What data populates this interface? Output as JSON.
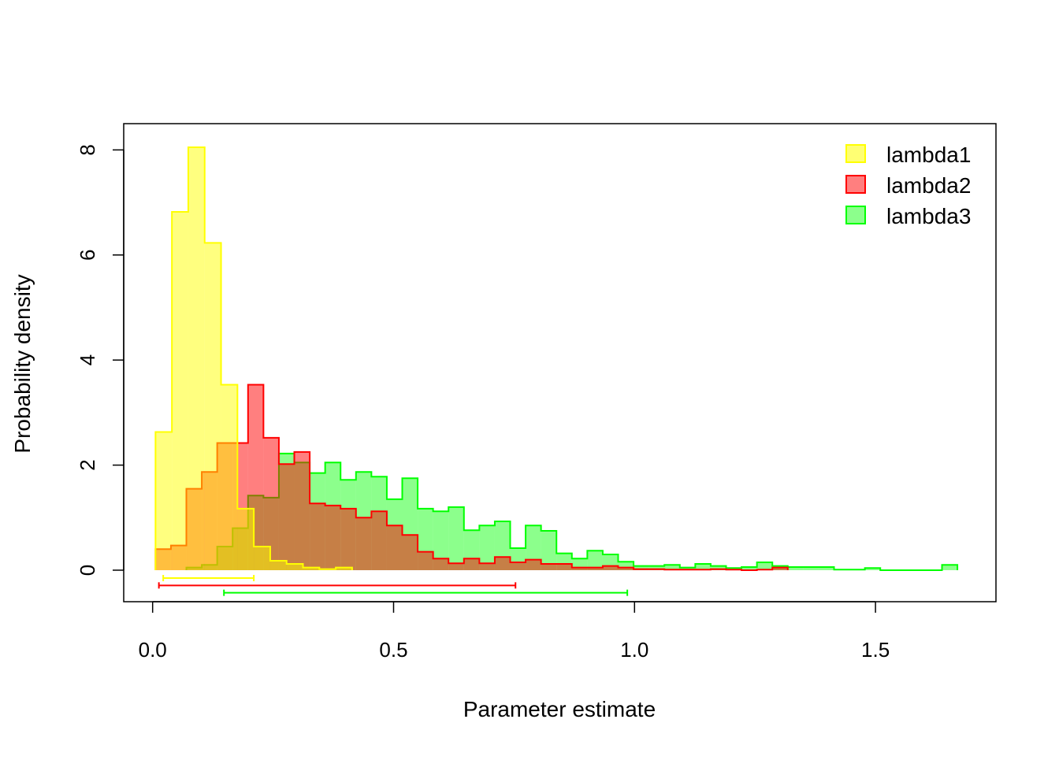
{
  "chart_data": {
    "type": "histogram",
    "xlabel": "Parameter estimate",
    "ylabel": "Probability density",
    "xlim": [
      -0.06,
      1.75
    ],
    "ylim": [
      -0.6,
      8.5
    ],
    "x_ticks": [
      0.0,
      0.5,
      1.0,
      1.5
    ],
    "x_tick_labels": [
      "0.0",
      "0.5",
      "1.0",
      "1.5"
    ],
    "y_ticks": [
      0,
      2,
      4,
      6,
      8
    ],
    "y_tick_labels": [
      "0",
      "2",
      "4",
      "6",
      "8"
    ],
    "legend_position": "top-right",
    "series": [
      {
        "name": "lambda3",
        "color": "#00FF00",
        "fill": "rgba(0,255,0,0.45)",
        "edges": [
          0.07,
          0.102,
          0.134,
          0.166,
          0.198,
          0.23,
          0.262,
          0.294,
          0.326,
          0.358,
          0.39,
          0.422,
          0.454,
          0.486,
          0.518,
          0.55,
          0.582,
          0.614,
          0.646,
          0.678,
          0.71,
          0.742,
          0.774,
          0.806,
          0.838,
          0.87,
          0.902,
          0.934,
          0.966,
          0.998,
          1.03,
          1.062,
          1.094,
          1.126,
          1.158,
          1.19,
          1.222,
          1.254,
          1.286,
          1.318,
          1.35,
          1.382,
          1.414,
          1.446,
          1.478,
          1.51,
          1.542,
          1.574,
          1.606,
          1.638,
          1.67
        ],
        "densities": [
          0.05,
          0.1,
          0.45,
          0.8,
          1.42,
          1.38,
          2.22,
          2.05,
          1.85,
          2.05,
          1.72,
          1.87,
          1.78,
          1.35,
          1.75,
          1.17,
          1.12,
          1.2,
          0.76,
          0.85,
          0.93,
          0.42,
          0.85,
          0.75,
          0.32,
          0.22,
          0.37,
          0.3,
          0.16,
          0.08,
          0.08,
          0.1,
          0.05,
          0.12,
          0.08,
          0.04,
          0.06,
          0.15,
          0.08,
          0.06,
          0.06,
          0.06,
          0.01,
          0.01,
          0.04,
          0.0,
          0.0,
          0.0,
          0.0,
          0.1
        ],
        "interval": [
          0.148,
          0.985
        ]
      },
      {
        "name": "lambda2",
        "color": "#FF0000",
        "fill": "rgba(255,0,0,0.5)",
        "edges": [
          0.006,
          0.038,
          0.07,
          0.102,
          0.134,
          0.166,
          0.198,
          0.23,
          0.262,
          0.294,
          0.326,
          0.358,
          0.39,
          0.422,
          0.454,
          0.486,
          0.518,
          0.55,
          0.582,
          0.614,
          0.646,
          0.678,
          0.71,
          0.742,
          0.774,
          0.806,
          0.838,
          0.87,
          0.902,
          0.934,
          0.966,
          0.998,
          1.03,
          1.062,
          1.094,
          1.126,
          1.158,
          1.19,
          1.222,
          1.254,
          1.286,
          1.318
        ],
        "densities": [
          0.4,
          0.47,
          1.55,
          1.87,
          2.42,
          2.42,
          3.53,
          2.52,
          2.02,
          2.25,
          1.27,
          1.23,
          1.17,
          1.0,
          1.12,
          0.85,
          0.67,
          0.35,
          0.22,
          0.13,
          0.22,
          0.13,
          0.25,
          0.15,
          0.2,
          0.12,
          0.12,
          0.05,
          0.05,
          0.08,
          0.05,
          0.02,
          0.02,
          0.01,
          0.01,
          0.01,
          0.02,
          0.01,
          0.0,
          0.01,
          0.05
        ],
        "interval": [
          0.013,
          0.753
        ]
      },
      {
        "name": "lambda1",
        "color": "#FFFF00",
        "fill": "rgba(255,255,0,0.5)",
        "edges": [
          0.006,
          0.04,
          0.074,
          0.108,
          0.142,
          0.176,
          0.21,
          0.244,
          0.278,
          0.312,
          0.346,
          0.38,
          0.414
        ],
        "densities": [
          2.63,
          6.82,
          8.05,
          6.23,
          3.53,
          1.17,
          0.45,
          0.18,
          0.12,
          0.05,
          0.02,
          0.05
        ],
        "interval": [
          0.022,
          0.21
        ]
      }
    ],
    "legend": [
      {
        "label": "lambda1",
        "color": "#FFFF00"
      },
      {
        "label": "lambda2",
        "color": "#FF0000"
      },
      {
        "label": "lambda3",
        "color": "#00FF00"
      }
    ]
  }
}
